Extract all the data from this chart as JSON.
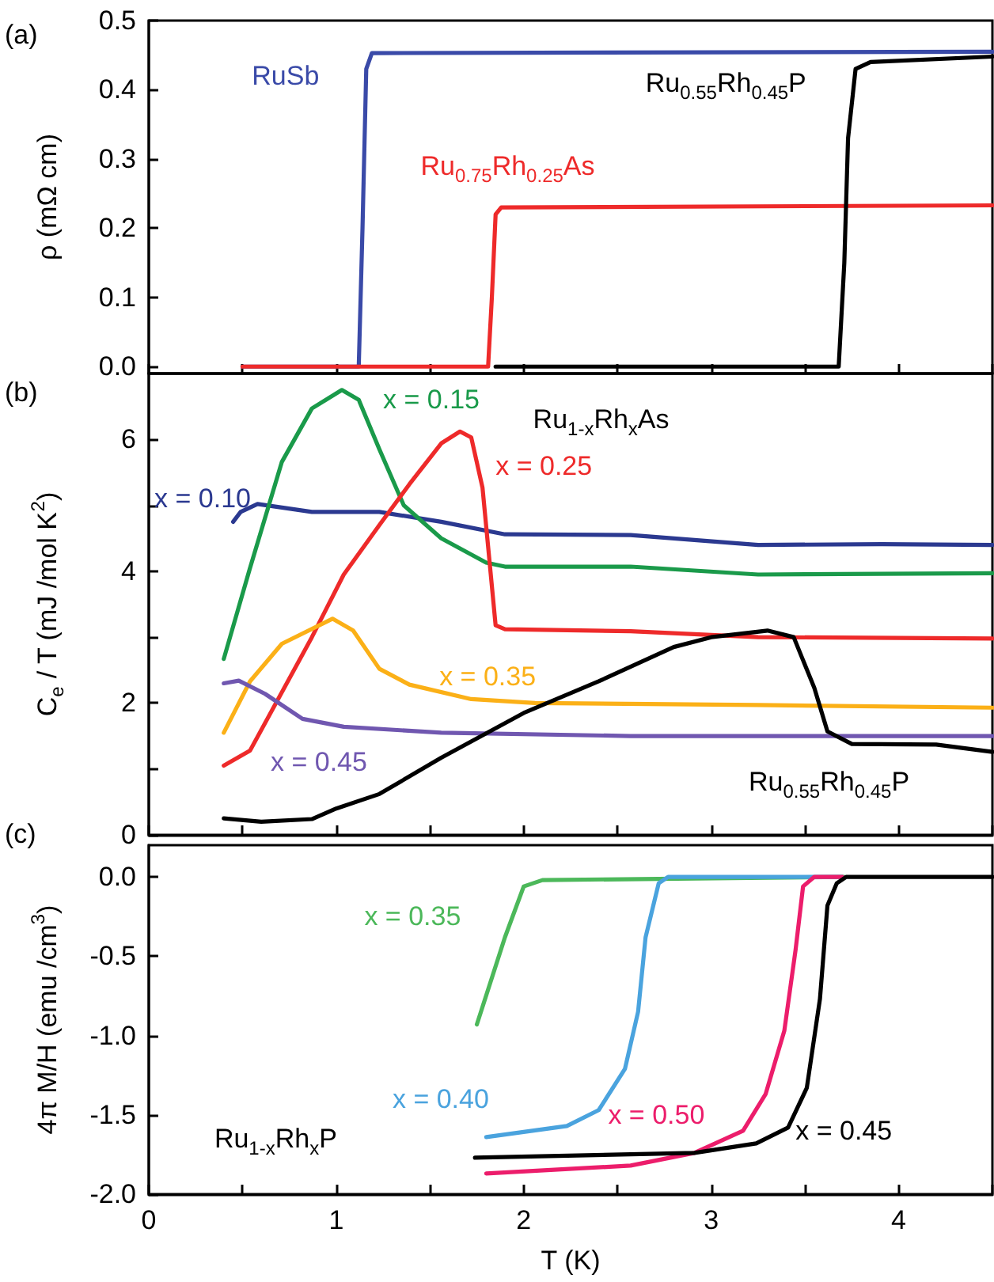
{
  "chart_data": [
    {
      "type": "line",
      "ylabel": "ρ (mΩ cm)",
      "annotations": [
        "(a)"
      ],
      "xlim": [
        0,
        4.5
      ],
      "xticks": [
        0,
        {
          "value": 0.5,
          "label": null
        },
        1,
        {
          "value": 1.5,
          "label": null
        },
        2,
        {
          "value": 2.5,
          "label": null
        },
        3,
        {
          "value": 3.5,
          "label": null
        },
        4,
        {
          "value": 4.5,
          "label": null
        }
      ],
      "ylim": [
        -0.01,
        0.5
      ],
      "yticks": [
        {
          "value": 0,
          "label": "0.0"
        },
        0.1,
        0.2,
        0.3,
        0.4,
        0.5
      ],
      "tick_labels": "y",
      "series": [
        {
          "name": "RuSb",
          "color": "#3a4aa8",
          "x": [
            0.5,
            1.12,
            1.14,
            1.16,
            1.19,
            4.5
          ],
          "values": [
            0,
            0,
            0.2,
            0.43,
            0.453,
            0.455
          ]
        },
        {
          "name": "Ru$_{0.75}$Rh$_{0.25}$As",
          "color": "#ee2a2a",
          "x": [
            0.5,
            1.81,
            1.83,
            1.85,
            1.88,
            4.5
          ],
          "values": [
            0,
            0,
            0.1,
            0.22,
            0.23,
            0.233
          ]
        },
        {
          "name": "Ru$_{0.55}$Rh$_{0.45}$P",
          "color": "#000000",
          "x": [
            1.85,
            3.68,
            3.71,
            3.73,
            3.77,
            3.85,
            4.5
          ],
          "values": [
            0,
            0,
            0.15,
            0.33,
            0.43,
            0.44,
            0.448
          ]
        }
      ]
    },
    {
      "type": "line",
      "ylabel": "C$_{e}$ / T (mJ /mol K$^{2}$)",
      "annotations": [
        "(b)",
        "Ru$_{1-x}$Rh$_{x}$As"
      ],
      "xlim": [
        0,
        4.5
      ],
      "xticks": [
        0,
        {
          "value": 0.5,
          "label": null
        },
        1,
        {
          "value": 1.5,
          "label": null
        },
        2,
        {
          "value": 2.5,
          "label": null
        },
        3,
        {
          "value": 3.5,
          "label": null
        },
        4,
        {
          "value": 4.5,
          "label": null
        }
      ],
      "ylim": [
        0,
        7
      ],
      "yticks": [
        0,
        {
          "value": 1,
          "label": null
        },
        2,
        {
          "value": 3,
          "label": null
        },
        4,
        {
          "value": 5,
          "label": null
        },
        6
      ],
      "tick_labels": "y",
      "series": [
        {
          "name": "x = 0.10",
          "color": "#2b3990",
          "x": [
            0.45,
            0.49,
            0.58,
            0.87,
            1.23,
            1.56,
            1.9,
            2.57,
            3.25,
            3.91,
            4.5
          ],
          "values": [
            4.75,
            4.9,
            5.02,
            4.9,
            4.9,
            4.75,
            4.56,
            4.55,
            4.4,
            4.41,
            4.4
          ]
        },
        {
          "name": "x = 0.15",
          "color": "#1a9a4a",
          "x": [
            0.4,
            0.54,
            0.71,
            0.87,
            1.03,
            1.12,
            1.23,
            1.36,
            1.56,
            1.8,
            1.9,
            2.57,
            3.25,
            4.5
          ],
          "values": [
            2.67,
            4.05,
            5.66,
            6.47,
            6.75,
            6.6,
            5.85,
            5.0,
            4.5,
            4.13,
            4.07,
            4.07,
            3.95,
            3.97
          ]
        },
        {
          "name": "x = 0.25",
          "color": "#ee2a2a",
          "x": [
            0.4,
            0.54,
            0.87,
            1.04,
            1.23,
            1.39,
            1.56,
            1.66,
            1.72,
            1.78,
            1.85,
            1.9,
            2.57,
            3.25,
            4.5
          ],
          "values": [
            1.05,
            1.28,
            3.0,
            3.95,
            4.7,
            5.32,
            5.94,
            6.12,
            6.03,
            5.27,
            3.18,
            3.12,
            3.09,
            3.0,
            2.98
          ]
        },
        {
          "name": "x = 0.35",
          "color": "#fbb017",
          "x": [
            0.4,
            0.54,
            0.71,
            0.98,
            1.09,
            1.23,
            1.39,
            1.72,
            2.06,
            3.25,
            4.5
          ],
          "values": [
            1.55,
            2.33,
            2.9,
            3.28,
            3.1,
            2.52,
            2.28,
            2.06,
            2.0,
            1.97,
            1.93
          ]
        },
        {
          "name": "x = 0.45",
          "color": "#7057b0",
          "x": [
            0.4,
            0.48,
            0.62,
            0.82,
            1.04,
            1.56,
            2.57,
            4.5
          ],
          "values": [
            2.3,
            2.34,
            2.14,
            1.76,
            1.64,
            1.55,
            1.5,
            1.5
          ]
        },
        {
          "name": "Ru$_{0.55}$Rh$_{0.45}$P",
          "color": "#000000",
          "x": [
            0.4,
            0.6,
            0.87,
            1.0,
            1.23,
            1.56,
            2.0,
            2.4,
            2.8,
            3.0,
            3.3,
            3.44,
            3.55,
            3.62,
            3.75,
            4.2,
            4.5
          ],
          "values": [
            0.25,
            0.2,
            0.24,
            0.4,
            0.62,
            1.17,
            1.85,
            2.33,
            2.85,
            3.0,
            3.1,
            3.0,
            2.23,
            1.57,
            1.38,
            1.37,
            1.26
          ]
        }
      ]
    },
    {
      "type": "line",
      "xlabel": "T (K)",
      "ylabel": "4π M/H (emu /cm$^{3}$)",
      "annotations": [
        "(c)",
        "Ru$_{1-x}$Rh$_{x}$P"
      ],
      "xlim": [
        0,
        4.5
      ],
      "xticks": [
        0,
        {
          "value": 0.5,
          "label": null
        },
        1,
        {
          "value": 1.5,
          "label": null
        },
        2,
        {
          "value": 2.5,
          "label": null
        },
        3,
        {
          "value": 3.5,
          "label": null
        },
        4,
        {
          "value": 4.5,
          "label": null
        }
      ],
      "ylim": [
        -2,
        0.2
      ],
      "yticks": [
        {
          "value": -2,
          "label": "-2.0"
        },
        -1.5,
        {
          "value": -1,
          "label": "-1.0"
        },
        -0.5,
        {
          "value": 0,
          "label": "0.0"
        }
      ],
      "series": [
        {
          "name": "x = 0.35",
          "color": "#4cb85a",
          "x": [
            1.75,
            1.9,
            2.0,
            2.1,
            3.71
          ],
          "values": [
            -0.93,
            -0.38,
            -0.06,
            -0.02,
            0
          ]
        },
        {
          "name": "x = 0.40",
          "color": "#4aa3de",
          "x": [
            1.8,
            2.23,
            2.4,
            2.54,
            2.61,
            2.65,
            2.72,
            2.77,
            3.7
          ],
          "values": [
            -1.64,
            -1.57,
            -1.47,
            -1.21,
            -0.85,
            -0.38,
            -0.04,
            0,
            0
          ]
        },
        {
          "name": "x = 0.50",
          "color": "#ec1d6b",
          "x": [
            1.8,
            2.57,
            2.91,
            3.17,
            3.29,
            3.39,
            3.45,
            3.49,
            3.55,
            3.7
          ],
          "values": [
            -1.87,
            -1.82,
            -1.74,
            -1.6,
            -1.37,
            -0.97,
            -0.46,
            -0.06,
            0,
            0
          ]
        },
        {
          "name": "x = 0.45",
          "color": "#000000",
          "x": [
            1.74,
            2.91,
            3.24,
            3.41,
            3.51,
            3.58,
            3.62,
            3.67,
            3.72,
            4.5
          ],
          "values": [
            -1.77,
            -1.74,
            -1.68,
            -1.58,
            -1.33,
            -0.77,
            -0.18,
            -0.04,
            0,
            0
          ]
        }
      ]
    }
  ]
}
